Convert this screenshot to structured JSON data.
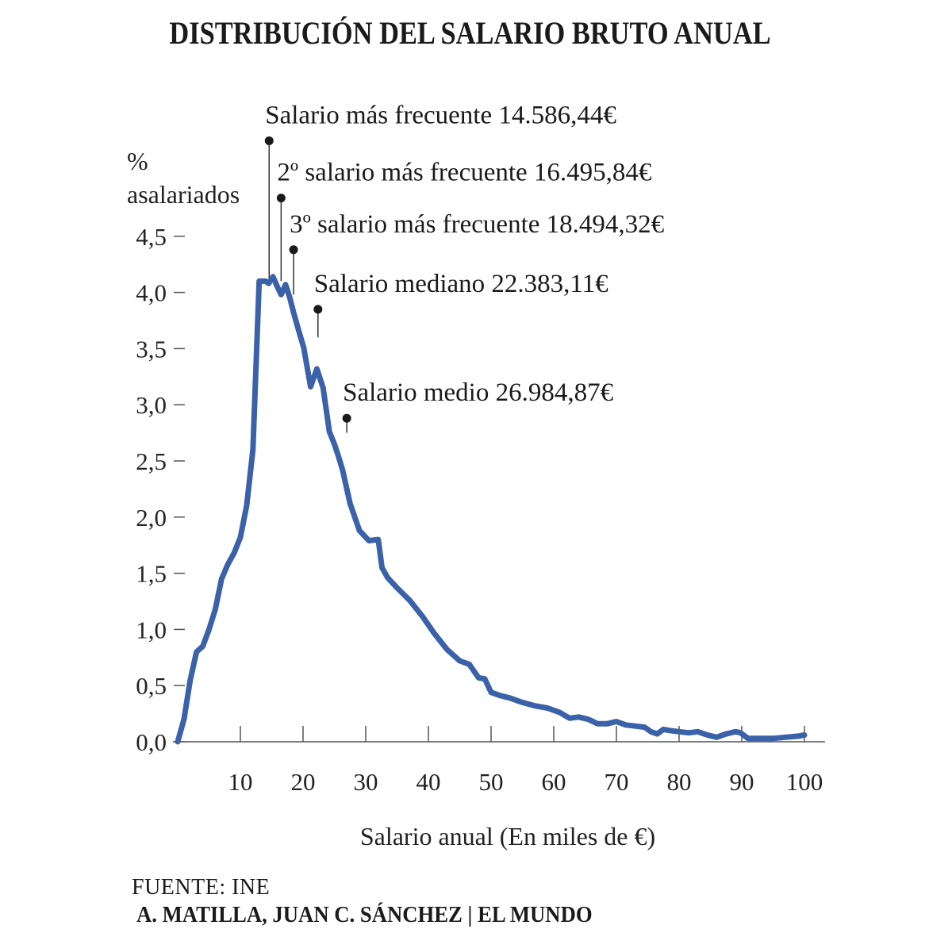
{
  "chart_data": {
    "type": "line",
    "title": "DISTRIBUCIÓN DEL SALARIO BRUTO ANUAL",
    "ylabel_line1": "%",
    "ylabel_line2": "asalariados",
    "xlabel": "Salario anual (En miles de €)",
    "xlim": [
      0,
      101
    ],
    "ylim": [
      0,
      4.6
    ],
    "grid": false,
    "x_ticks": [
      10,
      20,
      30,
      40,
      50,
      60,
      70,
      80,
      90,
      100
    ],
    "x_tick_labels": [
      "10",
      "20",
      "30",
      "40",
      "50",
      "60",
      "70",
      "80",
      "90",
      "100"
    ],
    "y_ticks": [
      0,
      0.5,
      1,
      1.5,
      2,
      2.5,
      3,
      3.5,
      4,
      4.5
    ],
    "y_tick_labels": [
      "0,0",
      "0,5",
      "1,0",
      "1,5",
      "2,0",
      "2,5",
      "3,0",
      "3,5",
      "4,0",
      "4,5"
    ],
    "series": [
      {
        "color": "#3b62a8",
        "x": [
          0,
          1,
          2,
          3,
          4,
          5,
          6,
          7,
          8,
          9,
          10,
          11,
          12,
          13,
          14,
          14.5,
          15.2,
          15.9,
          16.5,
          17.2,
          17.9,
          18.5,
          19.3,
          20.1,
          21.2,
          22.2,
          23.2,
          24.2,
          25,
          25.6,
          26.3,
          27.5,
          29,
          30.5,
          32,
          32.6,
          33.5,
          35,
          37,
          39,
          41,
          43,
          45,
          46.5,
          48,
          49,
          50,
          51.5,
          53,
          55,
          57,
          59,
          61,
          62.5,
          64,
          65.5,
          67,
          68.5,
          70,
          71.5,
          73,
          74.5,
          75.5,
          76.5,
          77.5,
          78.5,
          80,
          81.5,
          83,
          84.5,
          86,
          87.5,
          89,
          89.8,
          91,
          93,
          95,
          97,
          99,
          100
        ],
        "y": [
          0,
          0.2,
          0.55,
          0.8,
          0.85,
          1.0,
          1.18,
          1.45,
          1.58,
          1.68,
          1.82,
          2.1,
          2.6,
          4.1,
          4.1,
          4.08,
          4.14,
          4.05,
          3.98,
          4.07,
          3.95,
          3.82,
          3.66,
          3.51,
          3.16,
          3.32,
          3.15,
          2.76,
          2.65,
          2.55,
          2.42,
          2.12,
          1.88,
          1.79,
          1.8,
          1.55,
          1.46,
          1.37,
          1.26,
          1.12,
          0.96,
          0.82,
          0.72,
          0.69,
          0.57,
          0.56,
          0.44,
          0.41,
          0.39,
          0.35,
          0.32,
          0.3,
          0.26,
          0.21,
          0.22,
          0.2,
          0.16,
          0.16,
          0.18,
          0.15,
          0.14,
          0.13,
          0.09,
          0.07,
          0.11,
          0.1,
          0.09,
          0.08,
          0.09,
          0.06,
          0.04,
          0.07,
          0.09,
          0.08,
          0.03,
          0.03,
          0.03,
          0.04,
          0.05,
          0.06
        ]
      }
    ],
    "annotations": [
      {
        "text": "Salario más frecuente 14.586,44€",
        "x": 14.59,
        "y": 4.1,
        "level": 5.35
      },
      {
        "text": "2º salario más frecuente 16.495,84€",
        "x": 16.5,
        "y": 4.1,
        "level": 4.84
      },
      {
        "text": "3º salario más frecuente 18.494,32€",
        "x": 18.49,
        "y": 3.98,
        "level": 4.38
      },
      {
        "text": "Salario mediano 22.383,11€",
        "x": 22.38,
        "y": 3.6,
        "level": 3.85
      },
      {
        "text": "Salario medio 26.984,87€",
        "x": 26.98,
        "y": 2.75,
        "level": 2.88
      }
    ]
  },
  "footer": {
    "source": "FUENTE: INE",
    "credits": "A. MATILLA, JUAN C. SÁNCHEZ | EL MUNDO"
  }
}
